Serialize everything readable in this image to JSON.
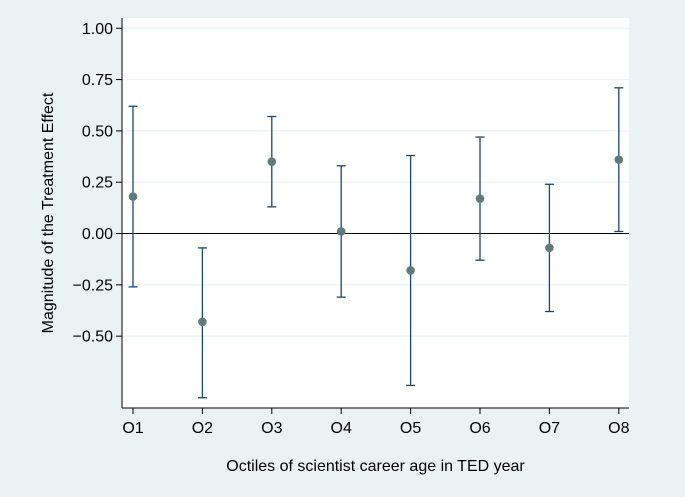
{
  "chart_data": {
    "type": "scatter",
    "title": "",
    "xlabel": "Octiles of scientist career age in TED year",
    "ylabel": "Magnitude of the Treatment Effect",
    "categories": [
      "O1",
      "O2",
      "O3",
      "O4",
      "O5",
      "O6",
      "O7",
      "O8"
    ],
    "estimates": [
      0.18,
      -0.43,
      0.35,
      0.01,
      -0.18,
      0.17,
      -0.07,
      0.36
    ],
    "ci_low": [
      -0.26,
      -0.8,
      0.13,
      -0.31,
      -0.74,
      -0.13,
      -0.38,
      0.01
    ],
    "ci_high": [
      0.62,
      -0.07,
      0.57,
      0.33,
      0.38,
      0.47,
      0.24,
      0.71
    ],
    "ylim": [
      -0.85,
      1.05
    ],
    "yticks": [
      1.0,
      0.75,
      0.5,
      0.25,
      0.0,
      -0.25,
      -0.5
    ],
    "ytick_labels": [
      "1.00",
      "0.75",
      "0.50",
      "0.25",
      "0.00",
      "−0.25",
      "−0.50"
    ],
    "reference_line": 0,
    "grid": "horizontal",
    "legend": "none",
    "colors": {
      "background": "#eaf2f3",
      "plot_area": "#ffffff",
      "gridline": "#eaf2f3",
      "marker": "#5f7c7a",
      "error_bar": "#1a476f",
      "axis": "#000000"
    }
  }
}
